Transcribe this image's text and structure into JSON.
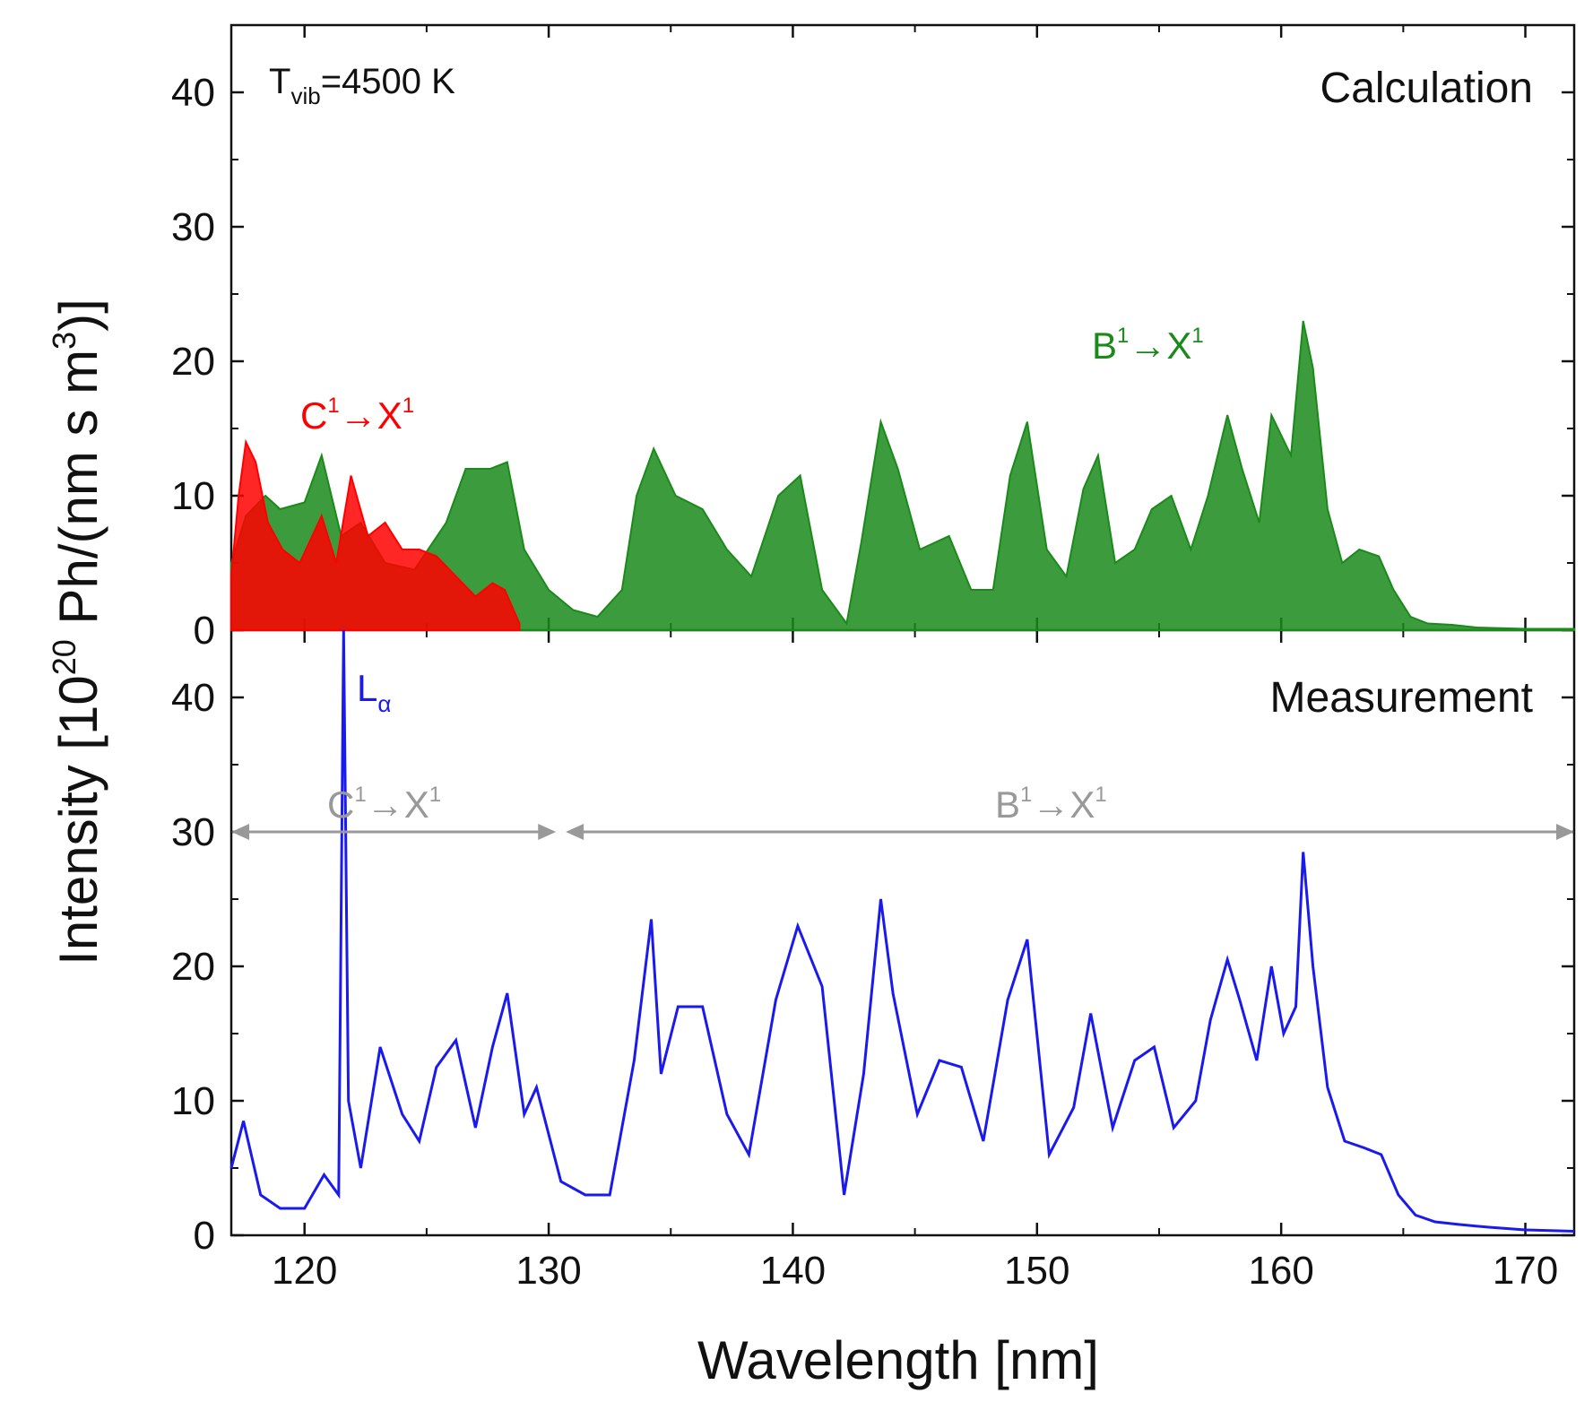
{
  "chart_data": {
    "type": "line",
    "title": "",
    "xlabel": "Wavelength [nm]",
    "ylabel": {
      "prefix": "Intensity [10",
      "exp": "20",
      "mid": " Ph/(nm s m",
      "exp2": "3",
      "suffix": ")]"
    },
    "xlim": [
      117,
      172
    ],
    "xticks": [
      120,
      130,
      140,
      150,
      160,
      170
    ],
    "panels": [
      {
        "name": "Calculation",
        "ylim": [
          0,
          45
        ],
        "yticks": [
          0,
          10,
          20,
          30,
          40
        ],
        "annotations": {
          "tvib": {
            "base": "T",
            "sub": "vib",
            "rest": "=4500 K"
          },
          "c_band": {
            "a": "C",
            "a_sup": "1",
            "arrow": "→",
            "b": "X",
            "b_sup": "1",
            "color": "#ff0000"
          },
          "b_band": {
            "a": "B",
            "a_sup": "1",
            "arrow": "→",
            "b": "X",
            "b_sup": "1",
            "color": "#1a8a1a"
          }
        },
        "series": [
          {
            "name": "B¹→X¹",
            "color": "#1a8a1a",
            "x": [
              117,
              117.6,
              118.4,
              119.0,
              120.0,
              120.7,
              121.5,
              122.3,
              123.3,
              124.5,
              125.8,
              126.6,
              127.6,
              128.3,
              129.0,
              130,
              131,
              132,
              133,
              133.6,
              134.3,
              135.2,
              136.3,
              137.3,
              138.3,
              139.4,
              140.3,
              141.2,
              142.2,
              142.8,
              143.6,
              144.3,
              145.2,
              146.4,
              147.3,
              148.2,
              148.9,
              149.6,
              150.4,
              151.2,
              151.9,
              152.5,
              153.2,
              154.0,
              154.7,
              155.5,
              156.3,
              157.0,
              157.8,
              158.4,
              159.1,
              159.6,
              160.4,
              160.9,
              161.3,
              161.9,
              162.5,
              163.2,
              164.0,
              164.6,
              165.3,
              166.0,
              167.0,
              168.0,
              170.0,
              172.0
            ],
            "y": [
              5,
              8.5,
              10,
              9,
              9.5,
              13,
              7,
              8,
              5,
              4.5,
              8,
              12,
              12,
              12.5,
              6,
              3,
              1.5,
              1,
              3,
              10,
              13.5,
              10,
              9,
              6,
              4,
              10,
              11.5,
              3,
              0.5,
              6.5,
              15.5,
              12,
              6,
              7,
              3,
              3,
              11.5,
              15.5,
              6,
              4,
              10.5,
              13,
              5,
              6,
              9,
              10,
              6,
              10,
              16,
              12,
              8,
              16,
              13,
              23,
              19.5,
              9,
              5,
              6,
              5.5,
              3,
              1,
              0.5,
              0.4,
              0.2,
              0.1,
              0.1
            ]
          },
          {
            "name": "C¹→X¹",
            "color": "#ff0000",
            "x": [
              117,
              117.3,
              117.6,
              118.0,
              118.5,
              119.1,
              119.8,
              120.7,
              121.3,
              121.9,
              122.6,
              123.3,
              124.0,
              124.7,
              125.4,
              126.2,
              127.0,
              127.7,
              128.2,
              128.8
            ],
            "y": [
              4,
              10,
              14,
              12.5,
              8,
              6,
              5,
              8.5,
              5,
              11.5,
              7,
              8,
              6,
              6,
              5.5,
              4,
              2.5,
              3.5,
              3,
              0.5
            ]
          }
        ]
      },
      {
        "name": "Measurement",
        "ylim": [
          0,
          45
        ],
        "yticks": [
          0,
          10,
          20,
          30,
          40
        ],
        "annotations": {
          "lalpha": {
            "base": "L",
            "sub": "α",
            "color": "#1a1aee"
          },
          "c_range": {
            "a": "C",
            "a_sup": "1",
            "arrow": "→",
            "b": "X",
            "b_sup": "1",
            "x0": 117,
            "x1": 130.3,
            "y": 30,
            "color": "#999999"
          },
          "b_range": {
            "a": "B",
            "a_sup": "1",
            "arrow": "→",
            "b": "X",
            "b_sup": "1",
            "x0": 130.7,
            "x1": 172,
            "y": 30,
            "color": "#999999"
          }
        },
        "series": [
          {
            "name": "",
            "color": "#1a1aee",
            "x": [
              117,
              117.5,
              118.2,
              119,
              120,
              120.8,
              121.4,
              121.6,
              121.8,
              122.3,
              123.1,
              124,
              124.7,
              125.4,
              126.2,
              127.0,
              127.7,
              128.3,
              129.0,
              129.5,
              130.5,
              131.5,
              132.5,
              133.5,
              134.2,
              134.6,
              135.3,
              136.3,
              137.3,
              138.2,
              139.3,
              140.2,
              141.2,
              142.1,
              142.9,
              143.6,
              144.1,
              145.1,
              146.0,
              146.9,
              147.8,
              148.8,
              149.6,
              150.5,
              151.5,
              152.2,
              153.1,
              154.0,
              154.8,
              155.6,
              156.5,
              157.1,
              157.8,
              158.3,
              159.0,
              159.6,
              160.1,
              160.6,
              160.9,
              161.3,
              161.9,
              162.6,
              163.4,
              164.1,
              164.8,
              165.5,
              166.3,
              167.3,
              168.5,
              170,
              172
            ],
            "y": [
              5,
              8.5,
              3,
              2,
              2,
              4.5,
              3,
              45,
              10,
              5,
              14,
              9,
              7,
              12.5,
              14.5,
              8,
              14,
              18,
              9,
              11,
              4,
              3,
              3,
              13,
              23.5,
              12,
              17,
              17,
              9,
              6,
              17.5,
              23,
              18.5,
              3,
              12,
              25,
              18,
              9,
              13,
              12.5,
              7,
              17.5,
              22,
              6,
              9.5,
              16.5,
              8,
              13,
              14,
              8,
              10,
              16,
              20.5,
              17.5,
              13,
              20,
              15,
              17,
              28.5,
              20,
              11,
              7,
              6.5,
              6,
              3,
              1.5,
              1,
              0.8,
              0.6,
              0.4,
              0.3
            ]
          }
        ]
      }
    ],
    "grid": false,
    "legend": "none"
  }
}
